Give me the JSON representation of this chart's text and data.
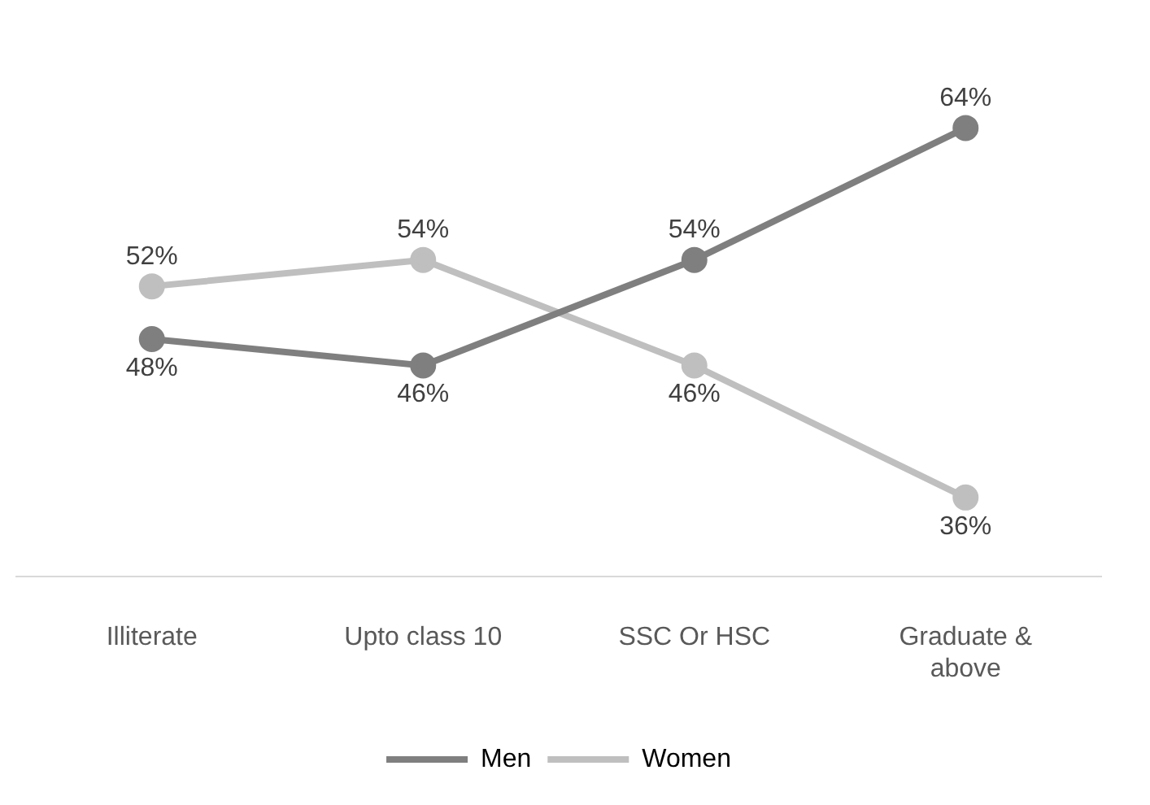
{
  "chart_data": {
    "type": "line",
    "categories": [
      "Illiterate",
      "Upto class 10",
      "SSC Or HSC",
      "Graduate & above"
    ],
    "series": [
      {
        "name": "Men",
        "color": "#7f7f7f",
        "values": [
          48,
          46,
          54,
          64
        ],
        "value_labels": [
          "48%",
          "46%",
          "54%",
          "64%"
        ]
      },
      {
        "name": "Women",
        "color": "#bfbfbf",
        "values": [
          52,
          54,
          46,
          36
        ],
        "value_labels": [
          "52%",
          "54%",
          "46%",
          "36%"
        ]
      }
    ],
    "marker": "circle",
    "legend": "bottom",
    "grid": false
  }
}
